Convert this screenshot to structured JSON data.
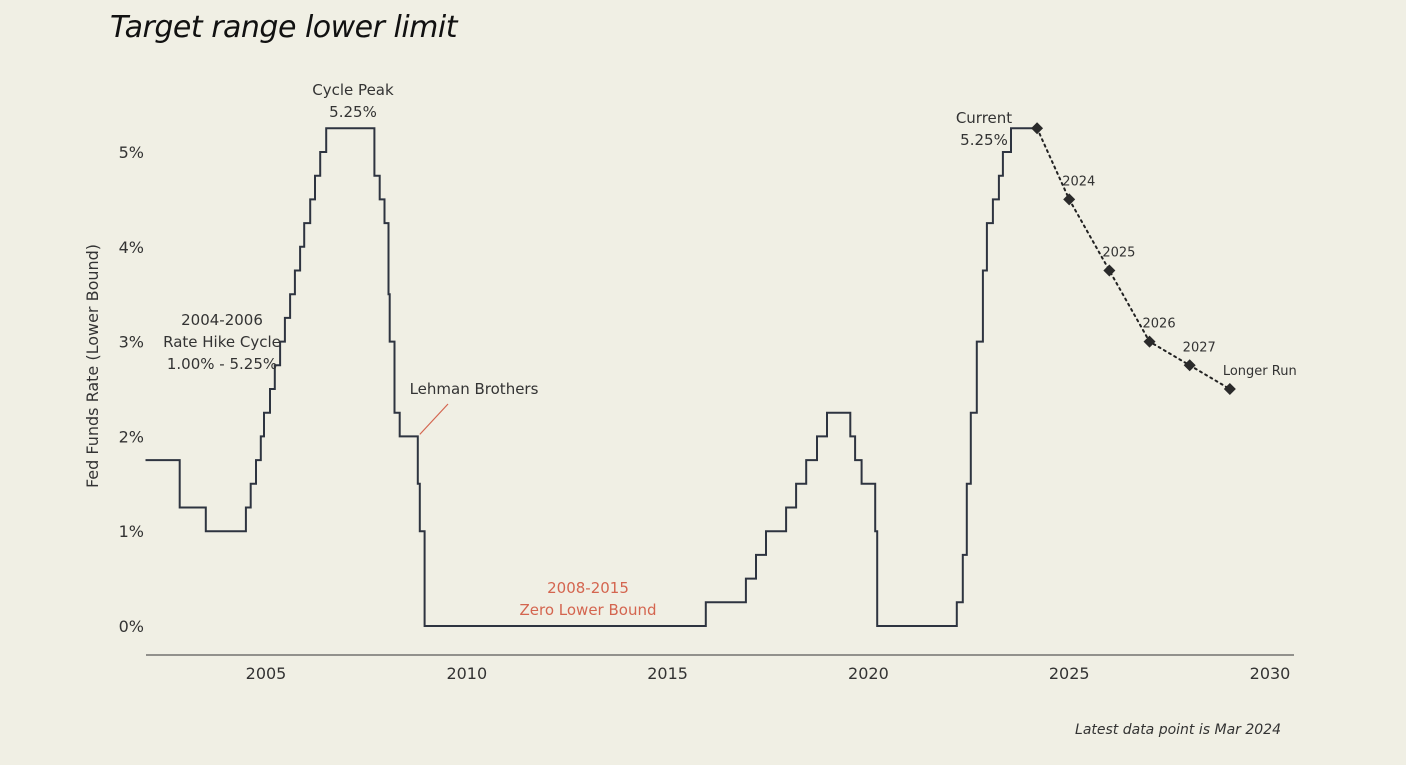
{
  "title": "Target range lower limit",
  "footnote": "Latest data point is Mar 2024",
  "chart_data": {
    "type": "line",
    "title": "Target range lower limit",
    "ylabel": "Fed Funds Rate (Lower Bound)",
    "xlabel": "",
    "xlim": [
      2002.0,
      2030.6
    ],
    "ylim": [
      -0.3,
      5.6
    ],
    "xticks": [
      2005,
      2010,
      2015,
      2020,
      2025,
      2030
    ],
    "xtick_labels": [
      "2005",
      "2010",
      "2015",
      "2020",
      "2025",
      "2030"
    ],
    "yticks": [
      0,
      1,
      2,
      3,
      4,
      5
    ],
    "ytick_labels": [
      "0%",
      "1%",
      "2%",
      "3%",
      "4%",
      "5%"
    ],
    "grid": false,
    "series": [
      {
        "style": "step",
        "color": "#2e3440",
        "points": [
          [
            2002.0,
            1.75
          ],
          [
            2002.85,
            1.75
          ],
          [
            2002.85,
            1.25
          ],
          [
            2003.5,
            1.25
          ],
          [
            2003.5,
            1.0
          ],
          [
            2004.5,
            1.0
          ],
          [
            2004.5,
            1.25
          ],
          [
            2004.62,
            1.25
          ],
          [
            2004.62,
            1.5
          ],
          [
            2004.75,
            1.5
          ],
          [
            2004.75,
            1.75
          ],
          [
            2004.87,
            1.75
          ],
          [
            2004.87,
            2.0
          ],
          [
            2004.95,
            2.0
          ],
          [
            2004.95,
            2.25
          ],
          [
            2005.1,
            2.25
          ],
          [
            2005.1,
            2.5
          ],
          [
            2005.22,
            2.5
          ],
          [
            2005.22,
            2.75
          ],
          [
            2005.35,
            2.75
          ],
          [
            2005.35,
            3.0
          ],
          [
            2005.47,
            3.0
          ],
          [
            2005.47,
            3.25
          ],
          [
            2005.6,
            3.25
          ],
          [
            2005.6,
            3.5
          ],
          [
            2005.72,
            3.5
          ],
          [
            2005.72,
            3.75
          ],
          [
            2005.85,
            3.75
          ],
          [
            2005.85,
            4.0
          ],
          [
            2005.95,
            4.0
          ],
          [
            2005.95,
            4.25
          ],
          [
            2006.1,
            4.25
          ],
          [
            2006.1,
            4.5
          ],
          [
            2006.22,
            4.5
          ],
          [
            2006.22,
            4.75
          ],
          [
            2006.35,
            4.75
          ],
          [
            2006.35,
            5.0
          ],
          [
            2006.5,
            5.0
          ],
          [
            2006.5,
            5.25
          ],
          [
            2007.7,
            5.25
          ],
          [
            2007.7,
            4.75
          ],
          [
            2007.83,
            4.75
          ],
          [
            2007.83,
            4.5
          ],
          [
            2007.95,
            4.5
          ],
          [
            2007.95,
            4.25
          ],
          [
            2008.05,
            4.25
          ],
          [
            2008.05,
            3.5
          ],
          [
            2008.08,
            3.5
          ],
          [
            2008.08,
            3.0
          ],
          [
            2008.2,
            3.0
          ],
          [
            2008.2,
            2.25
          ],
          [
            2008.33,
            2.25
          ],
          [
            2008.33,
            2.0
          ],
          [
            2008.78,
            2.0
          ],
          [
            2008.78,
            1.5
          ],
          [
            2008.83,
            1.5
          ],
          [
            2008.83,
            1.0
          ],
          [
            2008.95,
            1.0
          ],
          [
            2008.95,
            0.0
          ],
          [
            2015.95,
            0.0
          ],
          [
            2015.95,
            0.25
          ],
          [
            2016.95,
            0.25
          ],
          [
            2016.95,
            0.5
          ],
          [
            2017.2,
            0.5
          ],
          [
            2017.2,
            0.75
          ],
          [
            2017.45,
            0.75
          ],
          [
            2017.45,
            1.0
          ],
          [
            2017.95,
            1.0
          ],
          [
            2017.95,
            1.25
          ],
          [
            2018.2,
            1.25
          ],
          [
            2018.2,
            1.5
          ],
          [
            2018.45,
            1.5
          ],
          [
            2018.45,
            1.75
          ],
          [
            2018.72,
            1.75
          ],
          [
            2018.72,
            2.0
          ],
          [
            2018.97,
            2.0
          ],
          [
            2018.97,
            2.25
          ],
          [
            2019.55,
            2.25
          ],
          [
            2019.55,
            2.0
          ],
          [
            2019.67,
            2.0
          ],
          [
            2019.67,
            1.75
          ],
          [
            2019.83,
            1.75
          ],
          [
            2019.83,
            1.5
          ],
          [
            2020.17,
            1.5
          ],
          [
            2020.17,
            1.0
          ],
          [
            2020.22,
            1.0
          ],
          [
            2020.22,
            0.0
          ],
          [
            2022.2,
            0.0
          ],
          [
            2022.2,
            0.25
          ],
          [
            2022.35,
            0.25
          ],
          [
            2022.35,
            0.75
          ],
          [
            2022.45,
            0.75
          ],
          [
            2022.45,
            1.5
          ],
          [
            2022.55,
            1.5
          ],
          [
            2022.55,
            2.25
          ],
          [
            2022.7,
            2.25
          ],
          [
            2022.7,
            3.0
          ],
          [
            2022.85,
            3.0
          ],
          [
            2022.85,
            3.75
          ],
          [
            2022.95,
            3.75
          ],
          [
            2022.95,
            4.25
          ],
          [
            2023.1,
            4.25
          ],
          [
            2023.1,
            4.5
          ],
          [
            2023.25,
            4.5
          ],
          [
            2023.25,
            4.75
          ],
          [
            2023.35,
            4.75
          ],
          [
            2023.35,
            5.0
          ],
          [
            2023.55,
            5.0
          ],
          [
            2023.55,
            5.25
          ],
          [
            2024.2,
            5.25
          ]
        ]
      },
      {
        "style": "dotted-projection",
        "color": "#222222",
        "x": [
          2024.2,
          2025,
          2026,
          2027,
          2028,
          2029
        ],
        "y": [
          5.25,
          4.5,
          3.75,
          3.0,
          2.75,
          2.5
        ],
        "labels": [
          "",
          "2024",
          "2025",
          "2026",
          "2027",
          "Longer Run"
        ]
      }
    ],
    "annotations": [
      {
        "text_lines": [
          "Cycle Peak",
          "5.25%"
        ],
        "x": 2007.1,
        "y": 5.25,
        "color": "#333333"
      },
      {
        "text_lines": [
          "Current",
          "5.25%"
        ],
        "x": 2024.2,
        "y": 5.25,
        "color": "#333333"
      },
      {
        "text_lines": [
          "2004-2006",
          "Rate Hike Cycle",
          "1.00% - 5.25%"
        ],
        "x": 2005.0,
        "y": 3.0,
        "color": "#333333"
      },
      {
        "text_lines": [
          "Lehman Brothers"
        ],
        "x": 2008.78,
        "y": 2.0,
        "color": "#333333",
        "arrow_color": "#d4654f"
      },
      {
        "text_lines": [
          "2008-2015",
          "Zero Lower Bound"
        ],
        "x": 2012.5,
        "y": 0.0,
        "color": "#d4654f"
      }
    ]
  }
}
